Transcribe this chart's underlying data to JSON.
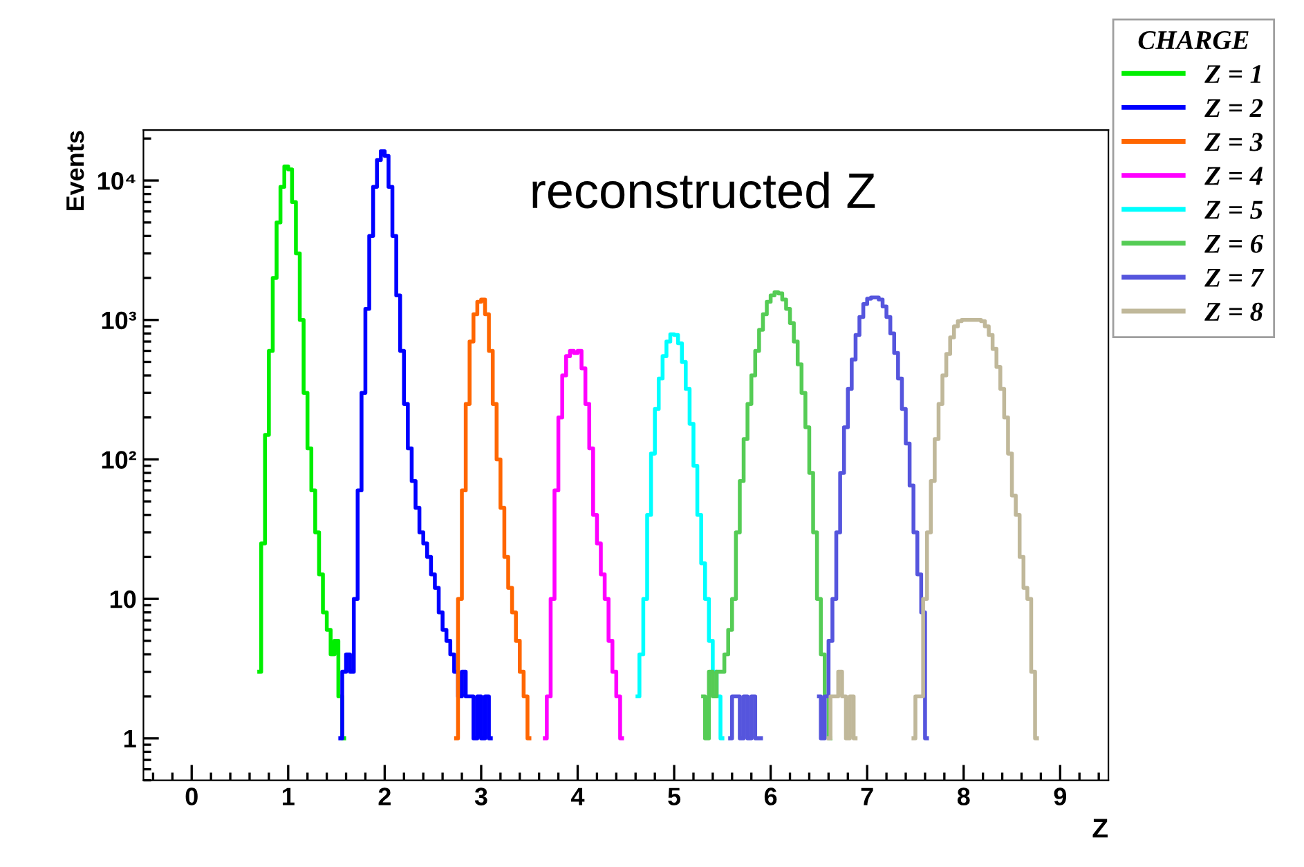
{
  "chart_data": {
    "type": "step",
    "xlabel": "Z",
    "ylabel": "Events",
    "legend_title": "CHARGE",
    "legend": "top right",
    "log": "y",
    "grid": false,
    "annotations": [
      "reconstructed Z"
    ],
    "xlim": [
      -0.5,
      9.5
    ],
    "xticks": [
      0,
      1,
      2,
      3,
      4,
      5,
      6,
      7,
      8,
      9
    ],
    "ylim": [
      0.5,
      23000
    ],
    "yticks": [
      1,
      10,
      {
        "value": 100,
        "label": "10²"
      },
      {
        "value": 1000,
        "label": "10³"
      },
      {
        "value": 10000,
        "label": "10⁴"
      }
    ],
    "series": [
      {
        "name": "Z = 1",
        "color": "#00ee00",
        "x": [
          0.7,
          0.74,
          0.78,
          0.82,
          0.86,
          0.9,
          0.94,
          0.98,
          1.02,
          1.06,
          1.1,
          1.14,
          1.18,
          1.22,
          1.26,
          1.3,
          1.34,
          1.38,
          1.42,
          1.46,
          1.5,
          1.54,
          1.58
        ],
        "values": [
          3,
          25,
          150,
          600,
          2000,
          5000,
          9000,
          12600,
          12000,
          7000,
          3000,
          1000,
          300,
          120,
          60,
          30,
          15,
          8,
          6,
          4,
          5,
          2,
          1
        ]
      },
      {
        "name": "Z = 2",
        "color": "#0000ff",
        "x": [
          1.54,
          1.58,
          1.62,
          1.66,
          1.7,
          1.74,
          1.78,
          1.82,
          1.86,
          1.9,
          1.94,
          1.98,
          2.02,
          2.06,
          2.1,
          2.14,
          2.18,
          2.22,
          2.26,
          2.3,
          2.34,
          2.38,
          2.42,
          2.46,
          2.5,
          2.54,
          2.58,
          2.62,
          2.66,
          2.7,
          2.74,
          2.78,
          2.82,
          2.86,
          2.9,
          2.94,
          2.98,
          3.02,
          3.06,
          3.1
        ],
        "values": [
          1,
          3,
          4,
          3,
          10,
          60,
          300,
          1200,
          4000,
          9000,
          14000,
          16200,
          15000,
          9000,
          4000,
          1500,
          600,
          250,
          120,
          70,
          45,
          30,
          25,
          20,
          15,
          12,
          8,
          6,
          5,
          4,
          3,
          2,
          3,
          2,
          2,
          1,
          2,
          1,
          2,
          1
        ]
      },
      {
        "name": "Z = 3",
        "color": "#ff6600",
        "x": [
          2.74,
          2.78,
          2.82,
          2.86,
          2.9,
          2.94,
          2.98,
          3.02,
          3.06,
          3.1,
          3.14,
          3.18,
          3.22,
          3.26,
          3.3,
          3.34,
          3.38,
          3.42,
          3.46,
          3.5
        ],
        "values": [
          1,
          10,
          60,
          250,
          700,
          1100,
          1350,
          1400,
          1100,
          600,
          250,
          100,
          45,
          20,
          12,
          8,
          5,
          3,
          2,
          1
        ]
      },
      {
        "name": "Z = 4",
        "color": "#ff00ff",
        "x": [
          3.66,
          3.7,
          3.74,
          3.78,
          3.82,
          3.86,
          3.9,
          3.94,
          3.98,
          4.02,
          4.06,
          4.1,
          4.14,
          4.18,
          4.22,
          4.26,
          4.3,
          4.34,
          4.38,
          4.42,
          4.46
        ],
        "values": [
          1,
          2,
          10,
          60,
          200,
          400,
          550,
          600,
          580,
          600,
          450,
          250,
          120,
          40,
          25,
          15,
          10,
          5,
          3,
          2,
          1
        ]
      },
      {
        "name": "Z = 5",
        "color": "#00ffff",
        "x": [
          4.62,
          4.66,
          4.7,
          4.74,
          4.78,
          4.82,
          4.86,
          4.9,
          4.94,
          4.98,
          5.02,
          5.06,
          5.1,
          5.14,
          5.18,
          5.22,
          5.26,
          5.3,
          5.34,
          5.38,
          5.42,
          5.46,
          5.5
        ],
        "values": [
          2,
          4,
          10,
          40,
          110,
          230,
          380,
          550,
          700,
          790,
          780,
          680,
          500,
          320,
          180,
          90,
          40,
          18,
          10,
          5,
          3,
          2,
          1
        ]
      },
      {
        "name": "Z = 6",
        "color": "#55cc55",
        "x": [
          5.3,
          5.34,
          5.38,
          5.42,
          5.46,
          5.5,
          5.54,
          5.58,
          5.62,
          5.66,
          5.7,
          5.74,
          5.78,
          5.82,
          5.86,
          5.9,
          5.94,
          5.98,
          6.02,
          6.06,
          6.1,
          6.14,
          6.18,
          6.22,
          6.26,
          6.3,
          6.34,
          6.38,
          6.42,
          6.46,
          6.5,
          6.54,
          6.58,
          6.62
        ],
        "values": [
          2,
          1,
          3,
          2,
          3,
          3,
          4,
          6,
          10,
          30,
          70,
          140,
          250,
          400,
          600,
          850,
          1100,
          1350,
          1500,
          1580,
          1550,
          1400,
          1200,
          950,
          700,
          480,
          300,
          170,
          80,
          30,
          10,
          4,
          2,
          1
        ]
      },
      {
        "name": "Z = 7",
        "color": "#5555dd",
        "x": [
          5.58,
          5.62,
          5.66,
          5.7,
          5.74,
          5.78,
          5.82,
          5.86,
          5.9,
          5.94,
          5.98,
          6.02,
          6.06,
          6.1,
          6.14,
          6.18,
          6.22,
          6.26,
          6.3,
          6.34,
          6.38,
          6.42,
          6.46,
          6.5,
          6.54,
          6.58,
          6.62,
          6.66,
          6.7,
          6.74,
          6.78,
          6.82,
          6.86,
          6.9,
          6.94,
          6.98,
          7.02,
          7.06,
          7.1,
          7.14,
          7.18,
          7.22,
          7.26,
          7.3,
          7.34,
          7.38,
          7.42,
          7.46,
          7.5,
          7.54,
          7.58,
          7.62
        ],
        "values": [
          1,
          2,
          2,
          1,
          2,
          1,
          2,
          1,
          1,
          null,
          null,
          null,
          null,
          null,
          null,
          null,
          null,
          null,
          null,
          null,
          null,
          null,
          null,
          2,
          1,
          2,
          5,
          10,
          30,
          80,
          170,
          320,
          520,
          780,
          1050,
          1300,
          1420,
          1450,
          1450,
          1400,
          1250,
          1050,
          800,
          580,
          380,
          230,
          130,
          65,
          30,
          15,
          8,
          1
        ]
      },
      {
        "name": "Z = 8",
        "color": "#c0b89a",
        "x": [
          6.6,
          6.64,
          6.68,
          6.72,
          6.76,
          6.8,
          6.84,
          6.88,
          6.92,
          6.96,
          7.0,
          7.04,
          7.08,
          7.12,
          7.16,
          7.2,
          7.24,
          7.28,
          7.32,
          7.36,
          7.4,
          7.44,
          7.48,
          7.52,
          7.56,
          7.6,
          7.64,
          7.68,
          7.72,
          7.76,
          7.8,
          7.84,
          7.88,
          7.92,
          7.96,
          8.0,
          8.04,
          8.08,
          8.12,
          8.16,
          8.2,
          8.24,
          8.28,
          8.32,
          8.36,
          8.4,
          8.44,
          8.48,
          8.52,
          8.56,
          8.6,
          8.64,
          8.68,
          8.72,
          8.76
        ],
        "values": [
          1,
          2,
          2,
          3,
          2,
          1,
          2,
          1,
          null,
          null,
          null,
          null,
          null,
          null,
          null,
          null,
          null,
          null,
          null,
          null,
          null,
          null,
          1,
          2,
          2,
          10,
          30,
          70,
          140,
          250,
          400,
          570,
          750,
          900,
          980,
          1000,
          1000,
          1000,
          1000,
          1000,
          980,
          900,
          780,
          620,
          460,
          320,
          200,
          110,
          55,
          40,
          20,
          12,
          10,
          3,
          1
        ]
      }
    ]
  }
}
